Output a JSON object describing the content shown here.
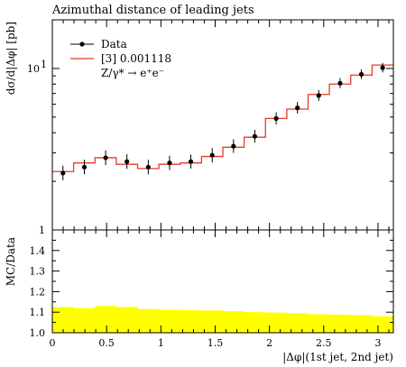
{
  "chart_data": [
    {
      "type": "line",
      "panel": "main",
      "title": "Azimuthal distance of leading jets",
      "ylabel": "dσ/d|Δφ| [pb]",
      "y_scale": "log",
      "ylim": [
        1,
        20
      ],
      "y_ticks": [
        {
          "v": 1,
          "label": "1"
        },
        {
          "v": 10,
          "label": "10",
          "sup": "1"
        }
      ],
      "xlim": [
        0,
        3.1416
      ],
      "legend_position": "top-left",
      "legend": [
        {
          "kind": "marker",
          "label": "Data",
          "color": "#000000"
        },
        {
          "kind": "line",
          "label": "[3] 0.001118",
          "color": "#e8392a"
        },
        {
          "kind": "text",
          "label": "Z/γ* → e⁺e⁻"
        }
      ],
      "x_edges": [
        0,
        0.1963,
        0.3927,
        0.589,
        0.7854,
        0.9817,
        1.1781,
        1.3744,
        1.5708,
        1.7671,
        1.9635,
        2.1598,
        2.3562,
        2.5525,
        2.7489,
        2.9452,
        3.1416
      ],
      "series": [
        {
          "name": "Data",
          "kind": "points",
          "color": "#000000",
          "x": [
            0.098,
            0.295,
            0.491,
            0.687,
            0.884,
            1.08,
            1.276,
            1.473,
            1.669,
            1.865,
            2.062,
            2.258,
            2.454,
            2.651,
            2.847,
            3.043
          ],
          "values": [
            2.25,
            2.45,
            2.8,
            2.65,
            2.45,
            2.6,
            2.65,
            2.9,
            3.3,
            3.8,
            4.9,
            5.7,
            6.8,
            8.1,
            9.2,
            10.1
          ],
          "err_low": [
            0.22,
            0.24,
            0.28,
            0.26,
            0.24,
            0.25,
            0.25,
            0.28,
            0.3,
            0.33,
            0.4,
            0.45,
            0.5,
            0.55,
            0.6,
            0.65
          ],
          "err_high": [
            0.25,
            0.27,
            0.31,
            0.29,
            0.27,
            0.28,
            0.28,
            0.31,
            0.34,
            0.37,
            0.45,
            0.5,
            0.56,
            0.62,
            0.68,
            0.72
          ]
        },
        {
          "name": "[3] 0.001118",
          "kind": "step",
          "color": "#e8392a",
          "values": [
            2.3,
            2.6,
            2.8,
            2.55,
            2.4,
            2.55,
            2.6,
            2.85,
            3.25,
            3.75,
            4.9,
            5.6,
            6.9,
            8.0,
            9.1,
            10.5
          ]
        }
      ]
    },
    {
      "type": "area",
      "panel": "ratio",
      "ylabel": "MC/Data",
      "xlabel": "|Δφ|(1st jet, 2nd jet)",
      "ylim": [
        1.0,
        1.5
      ],
      "y_ticks": [
        1.0,
        1.1,
        1.2,
        1.3,
        1.4
      ],
      "xlim": [
        0,
        3.1416
      ],
      "x_ticks": [
        0,
        0.5,
        1,
        1.5,
        2,
        2.5,
        3
      ],
      "reference_line": 1.0,
      "band_color": "#ffff00",
      "x_edges": [
        0,
        0.1963,
        0.3927,
        0.589,
        0.7854,
        0.9817,
        1.1781,
        1.3744,
        1.5708,
        1.7671,
        1.9635,
        2.1598,
        2.3562,
        2.5525,
        2.7489,
        2.9452,
        3.1416
      ],
      "band_upper": [
        1.125,
        1.12,
        1.13,
        1.125,
        1.115,
        1.112,
        1.11,
        1.108,
        1.105,
        1.1,
        1.098,
        1.095,
        1.09,
        1.088,
        1.085,
        1.08
      ],
      "band_lower": [
        1.0,
        1.0,
        1.0,
        1.0,
        1.0,
        1.0,
        1.0,
        1.0,
        1.0,
        1.0,
        1.0,
        1.0,
        1.0,
        1.0,
        1.0,
        1.0
      ]
    }
  ]
}
